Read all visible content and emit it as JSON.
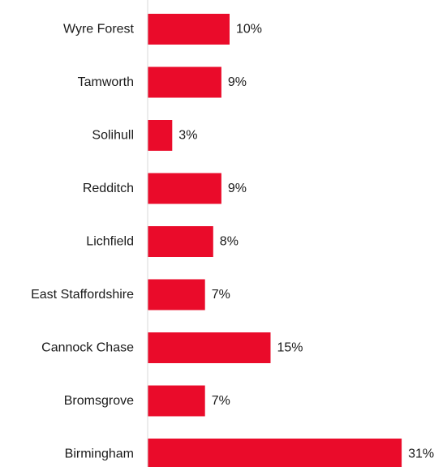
{
  "chart_data": {
    "type": "bar",
    "orientation": "horizontal",
    "categories": [
      "Wyre Forest",
      "Tamworth",
      "Solihull",
      "Redditch",
      "Lichfield",
      "East Staffordshire",
      "Cannock Chase",
      "Bromsgrove",
      "Birmingham"
    ],
    "values": [
      10,
      9,
      3,
      9,
      8,
      7,
      15,
      7,
      31
    ],
    "value_labels": [
      "10%",
      "9%",
      "3%",
      "9%",
      "8%",
      "7%",
      "15%",
      "7%",
      "31%"
    ],
    "unit": "%",
    "title": "",
    "xlabel": "",
    "ylabel": "",
    "xlim": [
      0,
      31
    ],
    "grid": false,
    "legend": "none",
    "bar_color": "#ea0b2a",
    "axis_color": "#d9d9d9"
  }
}
